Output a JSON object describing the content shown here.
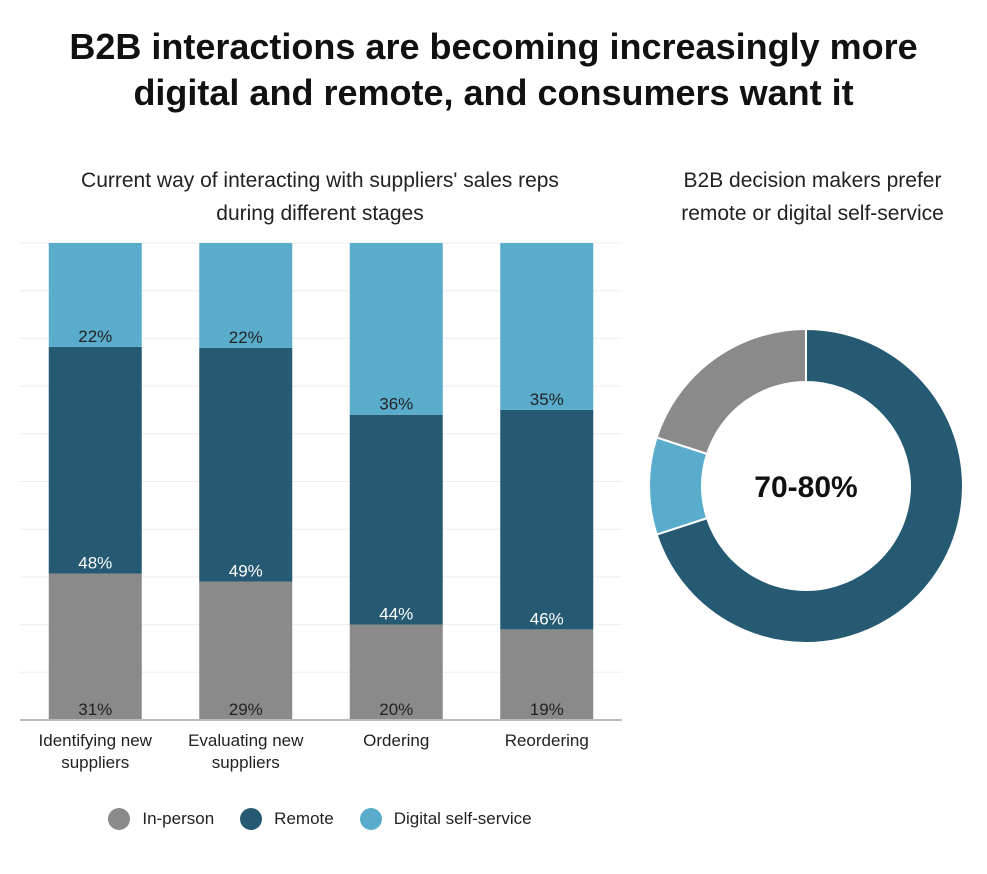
{
  "title_line1": "B2B interactions are becoming increasingly more",
  "title_line2": "digital and remote, and consumers want it",
  "chart_data": [
    {
      "type": "bar",
      "stacked": true,
      "title_line1": "Current way of interacting with suppliers' sales reps",
      "title_line2": "during different stages",
      "categories": [
        [
          "Identifying new",
          "suppliers"
        ],
        [
          "Evaluating new",
          "suppliers"
        ],
        [
          "Ordering"
        ],
        [
          "Reordering"
        ]
      ],
      "series": [
        {
          "name": "In-person",
          "color": "#8a8a8a",
          "label_color": "#222222",
          "values": [
            31,
            29,
            20,
            19
          ],
          "labels": [
            "31%",
            "29%",
            "20%",
            "19%"
          ]
        },
        {
          "name": "Remote",
          "color": "#265a73",
          "label_color": "#ffffff",
          "values": [
            48,
            49,
            44,
            46
          ],
          "labels": [
            "48%",
            "49%",
            "44%",
            "46%"
          ]
        },
        {
          "name": "Digital self-service",
          "color": "#5aaccd",
          "label_color": "#222222",
          "values": [
            22,
            22,
            36,
            35
          ],
          "labels": [
            "22%",
            "22%",
            "36%",
            "35%"
          ]
        }
      ],
      "ylim": [
        0,
        100
      ],
      "grid": true,
      "legend": "bottom"
    },
    {
      "type": "pie",
      "donut": true,
      "title_line1": "B2B decision makers prefer",
      "title_line2": "remote or digital self-service",
      "center_label": "70-80%",
      "slices": [
        {
          "name": "Remote",
          "value": 70,
          "color": "#265a73"
        },
        {
          "name": "Digital self-service",
          "value": 10,
          "color": "#5aaccd"
        },
        {
          "name": "In-person",
          "value": 20,
          "color": "#8a8a8a"
        }
      ]
    }
  ]
}
